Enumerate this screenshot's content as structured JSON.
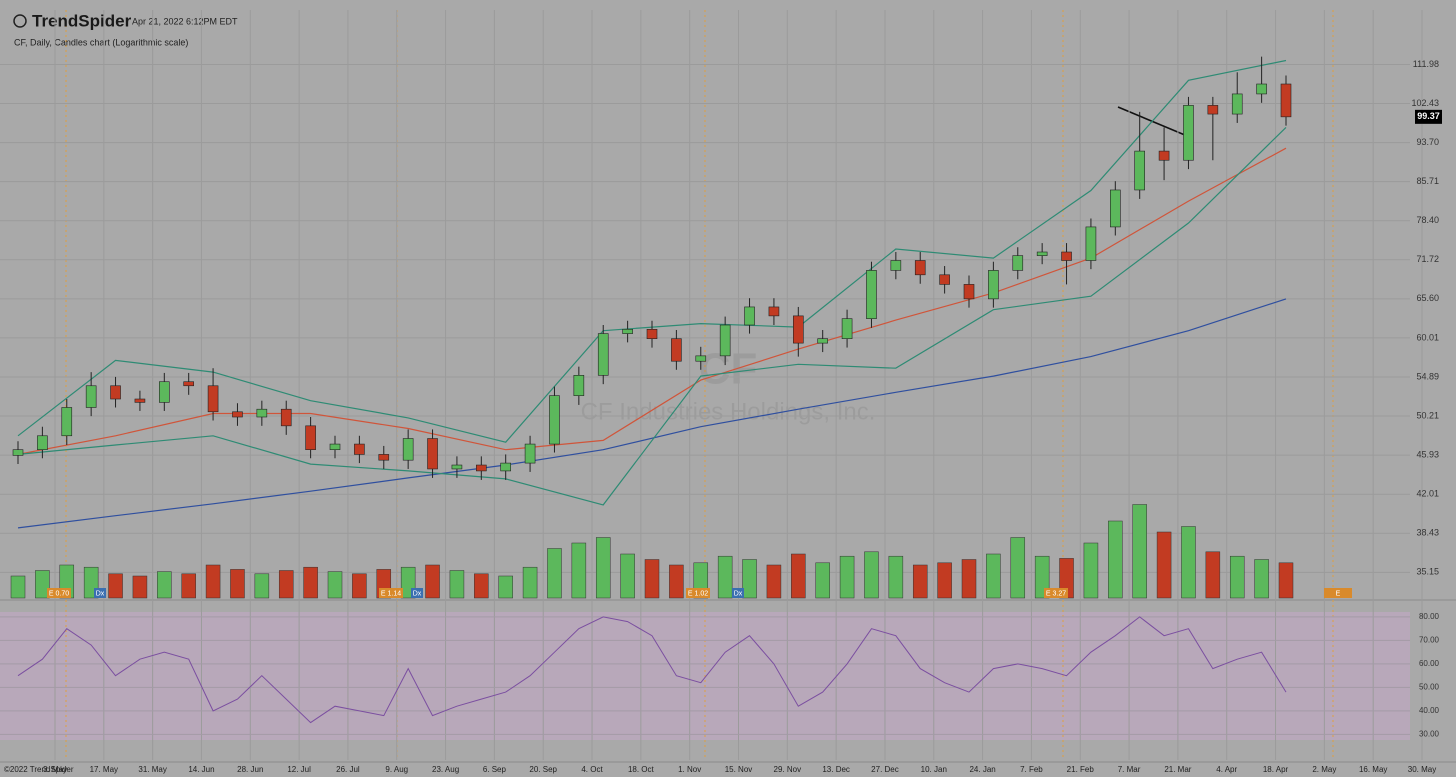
{
  "chart_data": {
    "type": "candlestick",
    "brand": "TrendSpider",
    "timestamp": "Apr 21, 2022 6:12PM EDT",
    "title": "CF, Daily, Candles chart (Logarithmic scale)",
    "watermark_symbol": "CF",
    "watermark_name": "CF Industries Holdings, Inc.",
    "footer": "©2022 TrendSpider",
    "log_scale": true,
    "grid": true,
    "up_color": "#5cb85c",
    "down_color": "#c23b22",
    "last_price": {
      "value": 99.37,
      "label": "99.37"
    },
    "xtick_labels": [
      "3. May",
      "17. May",
      "31. May",
      "14. Jun",
      "28. Jun",
      "12. Jul",
      "26. Jul",
      "9. Aug",
      "23. Aug",
      "6. Sep",
      "20. Sep",
      "4. Oct",
      "18. Oct",
      "1. Nov",
      "15. Nov",
      "29. Nov",
      "13. Dec",
      "27. Dec",
      "10. Jan",
      "24. Jan",
      "7. Feb",
      "21. Feb",
      "7. Mar",
      "21. Mar",
      "4. Apr",
      "18. Apr",
      "2. May",
      "16. May",
      "30. May"
    ],
    "ylim": [
      33,
      126.8
    ],
    "yticks": [
      111.98,
      102.43,
      {
        "value": 93.7,
        "label": "93.70"
      },
      85.71,
      {
        "value": 78.4,
        "label": "78.40"
      },
      71.72,
      {
        "value": 65.6,
        "label": "65.60"
      },
      60.01,
      54.89,
      50.21,
      45.93,
      42.01,
      38.43,
      35.15
    ],
    "open": [
      45.9,
      46.5,
      48.0,
      51.2,
      53.8,
      52.2,
      51.8,
      54.3,
      53.8,
      50.7,
      50.1,
      51.0,
      49.1,
      46.5,
      47.1,
      46.0,
      45.4,
      47.7,
      44.5,
      44.9,
      44.3,
      45.1,
      47.1,
      52.6,
      55.1,
      60.6,
      61.2,
      59.9,
      56.9,
      57.6,
      61.8,
      64.4,
      63.1,
      59.3,
      59.9,
      62.7,
      70.0,
      71.6,
      69.3,
      67.8,
      65.6,
      70.0,
      72.4,
      73.0,
      71.6,
      77.3,
      84.1,
      91.9,
      90.0,
      102.0,
      100.0,
      104.7,
      107.1
    ],
    "high": [
      47.4,
      49.0,
      52.2,
      55.5,
      54.9,
      53.2,
      55.4,
      55.4,
      56.0,
      51.7,
      52.0,
      52.0,
      50.1,
      48.0,
      48.0,
      46.9,
      48.7,
      48.7,
      45.8,
      45.8,
      46.0,
      48.0,
      53.7,
      56.2,
      61.8,
      62.4,
      62.4,
      61.1,
      58.8,
      63.0,
      65.7,
      65.7,
      64.4,
      61.1,
      64.0,
      71.4,
      73.0,
      73.0,
      70.7,
      69.2,
      71.4,
      73.8,
      74.5,
      74.5,
      78.8,
      85.8,
      100.5,
      97.0,
      104.0,
      104.0,
      110.0,
      114.0,
      109.2
    ],
    "low": [
      45.0,
      45.6,
      47.0,
      50.2,
      51.2,
      50.8,
      50.8,
      52.7,
      49.7,
      49.1,
      49.1,
      48.1,
      45.6,
      45.6,
      45.1,
      44.5,
      44.5,
      43.6,
      43.6,
      43.4,
      43.4,
      44.2,
      46.2,
      51.5,
      54.0,
      59.4,
      58.7,
      55.8,
      55.8,
      56.4,
      60.6,
      61.8,
      57.5,
      58.1,
      58.7,
      61.4,
      68.6,
      67.9,
      66.4,
      64.3,
      64.3,
      68.6,
      71.0,
      67.8,
      70.2,
      75.8,
      82.4,
      86.0,
      88.2,
      90.0,
      98.0,
      102.6,
      97.4
    ],
    "close": [
      46.5,
      48.0,
      51.2,
      53.8,
      52.2,
      51.8,
      54.3,
      53.8,
      50.7,
      50.1,
      51.0,
      49.1,
      46.5,
      47.1,
      46.0,
      45.4,
      47.7,
      44.5,
      44.9,
      44.3,
      45.1,
      47.1,
      52.6,
      55.1,
      60.6,
      61.2,
      59.9,
      56.9,
      57.6,
      61.8,
      64.4,
      63.1,
      59.3,
      59.9,
      62.7,
      70.0,
      71.6,
      69.3,
      67.8,
      65.6,
      70.0,
      72.4,
      73.0,
      71.6,
      77.3,
      84.1,
      91.9,
      90.0,
      102.0,
      100.0,
      104.7,
      107.1,
      99.37
    ],
    "volume": [
      20,
      25,
      30,
      28,
      22,
      20,
      24,
      22,
      30,
      26,
      22,
      25,
      28,
      24,
      22,
      26,
      28,
      30,
      25,
      22,
      20,
      28,
      45,
      50,
      55,
      40,
      35,
      30,
      32,
      38,
      35,
      30,
      40,
      32,
      38,
      42,
      38,
      30,
      32,
      35,
      40,
      55,
      38,
      36,
      50,
      70,
      85,
      60,
      65,
      42,
      38,
      35,
      32
    ],
    "overlays": [
      {
        "color": "#2f4f9f",
        "values": [
          38.9,
          40.0,
          41.1,
          42.3,
          43.6,
          44.9,
          46.5,
          49.0,
          51.0,
          53.0,
          55.0,
          57.5,
          61.0,
          65.6
        ]
      },
      {
        "color": "#d0553a",
        "values": [
          46.0,
          48.0,
          50.5,
          50.5,
          48.8,
          46.5,
          47.5,
          54.5,
          58.5,
          62.5,
          66.5,
          72.0,
          82.0,
          92.5
        ]
      },
      {
        "color": "#2e8b74",
        "values": [
          48,
          57,
          55.5,
          52,
          50,
          47.3,
          61,
          62,
          61.5,
          73.5,
          72,
          84,
          108,
          113
        ]
      },
      {
        "color": "#2e8b74",
        "values": [
          46,
          47,
          48,
          45,
          44.3,
          43.5,
          41,
          55,
          56.5,
          56,
          64,
          66,
          78,
          97
        ]
      }
    ],
    "events": [
      "E 0.70",
      "Dx",
      "E 1.14",
      "Dx",
      "E 1.02",
      "Dx",
      "E 3.27",
      "E"
    ],
    "rsi": {
      "color": "#7b4fa0",
      "ylim": [
        19.1,
        87.2
      ],
      "yticks": [
        {
          "value": 80,
          "label": "80.00"
        },
        {
          "value": 70,
          "label": "70.00"
        },
        {
          "value": 60,
          "label": "60.00"
        },
        {
          "value": 50,
          "label": "50.00"
        },
        {
          "value": 40,
          "label": "40.00"
        },
        {
          "value": 30,
          "label": "30.00"
        }
      ],
      "values": [
        55,
        62,
        75,
        68,
        55,
        62,
        65,
        62,
        40,
        45,
        55,
        45,
        35,
        42,
        40,
        38,
        58,
        38,
        42,
        45,
        48,
        55,
        65,
        75,
        80,
        78,
        72,
        55,
        52,
        65,
        72,
        60,
        42,
        48,
        60,
        75,
        72,
        58,
        52,
        48,
        58,
        60,
        58,
        55,
        65,
        72,
        80,
        72,
        75,
        58,
        62,
        65,
        48
      ]
    }
  }
}
